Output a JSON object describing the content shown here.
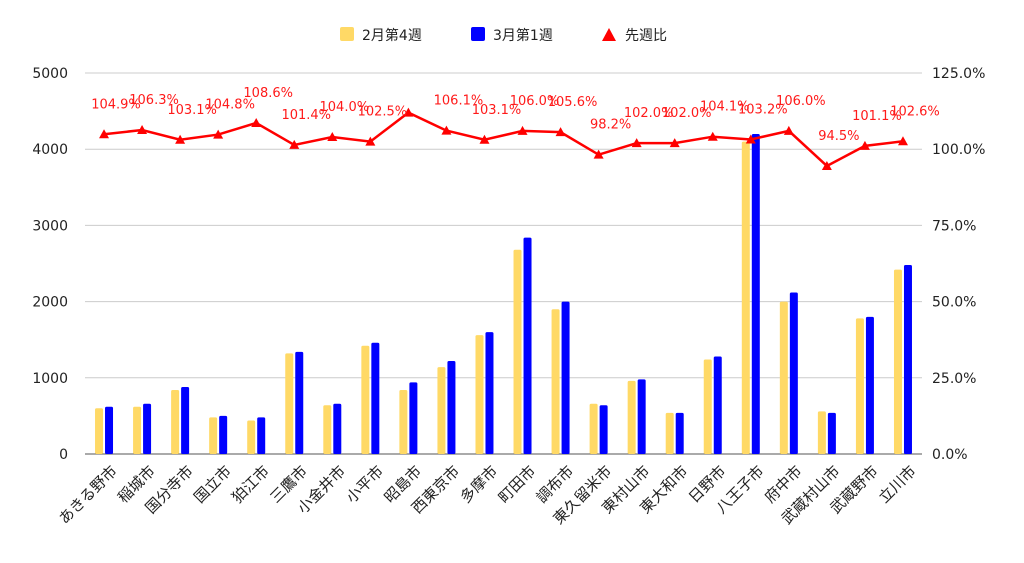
{
  "chart_data": {
    "type": "bar",
    "categories": [
      "あきる野市",
      "稲城市",
      "国分寺市",
      "国立市",
      "狛江市",
      "三鷹市",
      "小金井市",
      "小平市",
      "昭島市",
      "西東京市",
      "多摩市",
      "町田市",
      "調布市",
      "東久留米市",
      "東村山市",
      "東大和市",
      "日野市",
      "八王子市",
      "府中市",
      "武蔵村山市",
      "武蔵野市",
      "立川市"
    ],
    "series": [
      {
        "name": "2月第4週",
        "color": "#ffd966",
        "values": [
          600,
          620,
          840,
          480,
          440,
          1320,
          640,
          1420,
          840,
          1140,
          1560,
          2680,
          1900,
          660,
          960,
          540,
          1240,
          4100,
          2000,
          560,
          1780,
          2420
        ]
      },
      {
        "name": "3月第1週",
        "color": "#0000ff",
        "values": [
          620,
          660,
          880,
          500,
          480,
          1340,
          660,
          1460,
          940,
          1220,
          1600,
          2840,
          2000,
          640,
          980,
          540,
          1280,
          4200,
          2120,
          540,
          1800,
          2480
        ]
      }
    ],
    "line_series": {
      "name": "先週比",
      "color": "#ff0000",
      "axis": "right",
      "values": [
        104.9,
        106.3,
        103.1,
        104.8,
        108.6,
        101.4,
        104.0,
        102.5,
        112.0,
        106.1,
        103.1,
        106.0,
        105.6,
        98.2,
        102.0,
        102.0,
        104.1,
        103.2,
        106.0,
        94.5,
        101.1,
        102.6
      ],
      "labels": [
        "104.9%",
        "106.3%",
        "103.1%",
        "104.8%",
        "108.6%",
        "101.4%",
        "104.0%",
        "102.5%",
        "",
        "106.1%",
        "103.1%",
        "106.0%",
        "105.6%",
        "98.2%",
        "102.0%",
        "102.0%",
        "104.1%",
        "103.2%",
        "106.0%",
        "94.5%",
        "101.1%",
        "102.6%"
      ]
    },
    "left_axis": {
      "min": 0,
      "max": 5000,
      "ticks": [
        0,
        1000,
        2000,
        3000,
        4000,
        5000
      ],
      "tick_labels": [
        "0",
        "1000",
        "2000",
        "3000",
        "4000",
        "5000"
      ]
    },
    "right_axis": {
      "min": 0,
      "max": 125,
      "ticks": [
        0,
        25,
        50,
        75,
        100,
        125
      ],
      "tick_labels": [
        "0.0%",
        "25.0%",
        "50.0%",
        "75.0%",
        "100.0%",
        "125.0%"
      ]
    },
    "legend": {
      "position": "top",
      "items": [
        "2月第4週",
        "3月第1週",
        "先週比"
      ]
    },
    "grid": true
  }
}
